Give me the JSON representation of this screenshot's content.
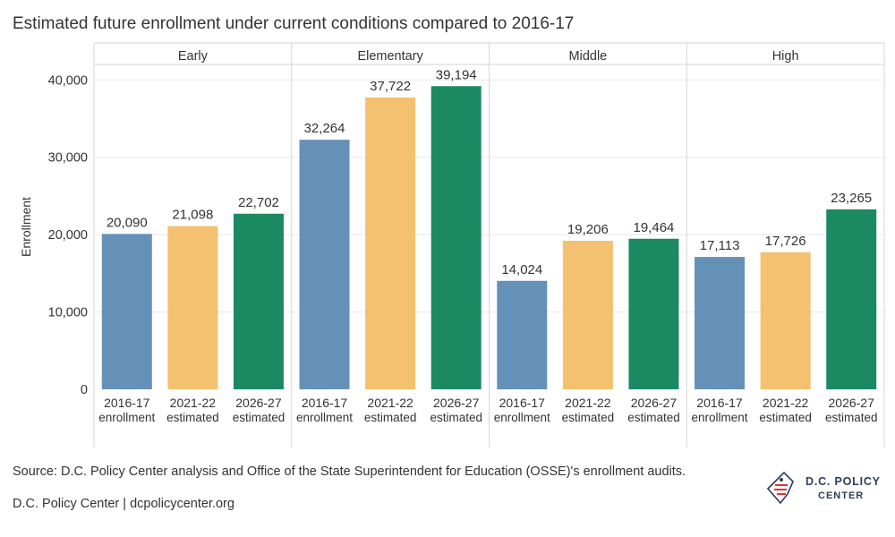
{
  "colors": {
    "enrollment": "#6591b8",
    "estimated_2021": "#f3c16f",
    "estimated_2026": "#1b8a62",
    "grid": "#e8e8e8",
    "divider": "#d6d6d6",
    "text": "#333333",
    "logo_navy": "#2d3e57",
    "logo_red": "#e4312f"
  },
  "chart_data": {
    "type": "bar",
    "title": "Estimated future enrollment under current conditions compared to 2016-17",
    "ylabel": "Enrollment",
    "ylim": [
      0,
      42000
    ],
    "yticks": [
      0,
      10000,
      20000,
      30000,
      40000
    ],
    "ytick_labels": [
      "0",
      "10,000",
      "20,000",
      "30,000",
      "40,000"
    ],
    "grid": true,
    "bar_categories": [
      {
        "line1": "2016-17",
        "line2": "enrollment"
      },
      {
        "line1": "2021-22",
        "line2": "estimated"
      },
      {
        "line1": "2026-27",
        "line2": "estimated"
      }
    ],
    "panels": [
      {
        "name": "Early",
        "values": [
          20090,
          21098,
          22702
        ],
        "labels": [
          "20,090",
          "21,098",
          "22,702"
        ]
      },
      {
        "name": "Elementary",
        "values": [
          32264,
          37722,
          39194
        ],
        "labels": [
          "32,264",
          "37,722",
          "39,194"
        ]
      },
      {
        "name": "Middle",
        "values": [
          14024,
          19206,
          19464
        ],
        "labels": [
          "14,024",
          "19,206",
          "19,464"
        ]
      },
      {
        "name": "High",
        "values": [
          17113,
          17726,
          23265
        ],
        "labels": [
          "17,113",
          "17,726",
          "23,265"
        ]
      }
    ]
  },
  "footer": {
    "source": "Source: D.C. Policy Center analysis and Office of the State Superintendent for Education (OSSE)'s enrollment audits.",
    "credit": "D.C. Policy Center | dcpolicycenter.org"
  },
  "logo": {
    "line1": "D.C. POLICY",
    "line2": "CENTER",
    "icon": "dc-map-icon"
  }
}
